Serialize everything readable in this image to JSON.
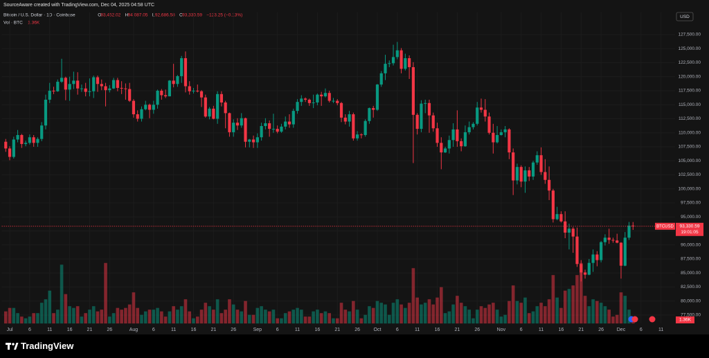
{
  "chart_data": {
    "type": "candlestick",
    "credit": "SourceAware created with TradingView.com, Dec 04, 2025 04:58 UTC",
    "title": "Bitcoin / U.S. Dollar · 1D · Coinbase",
    "ohlc_names": [
      "O",
      "H",
      "L",
      "C"
    ],
    "ohlc_texts": [
      "93,452.02",
      "94,087.05",
      "92,686.58",
      "93,330.59"
    ],
    "change": "−123.25 (−0.13%)",
    "currency": "USD",
    "symbol": "BTCUSD",
    "last_price_label": "93,330.59",
    "countdown": "19:01:05",
    "brand": "TradingView",
    "up_color": "#089981",
    "down_color": "#f23645",
    "grid": true,
    "xlim": [
      "2025-06-29",
      "2025-12-14"
    ],
    "ylim": [
      76000,
      131500
    ],
    "y2lim": [
      0,
      180000
    ],
    "xticks": [
      {
        "value": "2025-07-01",
        "label": "Jul"
      },
      {
        "value": "2025-07-06",
        "label": "6"
      },
      {
        "value": "2025-07-11",
        "label": "11"
      },
      {
        "value": "2025-07-16",
        "label": "16"
      },
      {
        "value": "2025-07-21",
        "label": "21"
      },
      {
        "value": "2025-07-26",
        "label": "26"
      },
      {
        "value": "2025-08-01",
        "label": "Aug"
      },
      {
        "value": "2025-08-06",
        "label": "6"
      },
      {
        "value": "2025-08-11",
        "label": "11"
      },
      {
        "value": "2025-08-16",
        "label": "16"
      },
      {
        "value": "2025-08-21",
        "label": "21"
      },
      {
        "value": "2025-08-26",
        "label": "26"
      },
      {
        "value": "2025-09-01",
        "label": "Sep"
      },
      {
        "value": "2025-09-06",
        "label": "6"
      },
      {
        "value": "2025-09-11",
        "label": "11"
      },
      {
        "value": "2025-09-16",
        "label": "16"
      },
      {
        "value": "2025-09-21",
        "label": "21"
      },
      {
        "value": "2025-09-26",
        "label": "26"
      },
      {
        "value": "2025-10-01",
        "label": "Oct"
      },
      {
        "value": "2025-10-06",
        "label": "6"
      },
      {
        "value": "2025-10-11",
        "label": "11"
      },
      {
        "value": "2025-10-16",
        "label": "16"
      },
      {
        "value": "2025-10-21",
        "label": "21"
      },
      {
        "value": "2025-10-26",
        "label": "26"
      },
      {
        "value": "2025-11-01",
        "label": "Nov"
      },
      {
        "value": "2025-11-06",
        "label": "6"
      },
      {
        "value": "2025-11-11",
        "label": "11"
      },
      {
        "value": "2025-11-16",
        "label": "16"
      },
      {
        "value": "2025-11-21",
        "label": "21"
      },
      {
        "value": "2025-11-26",
        "label": "26"
      },
      {
        "value": "2025-12-01",
        "label": "Dec"
      },
      {
        "value": "2025-12-06",
        "label": "6"
      },
      {
        "value": "2025-12-11",
        "label": "11"
      }
    ],
    "yticks": [
      {
        "value": 77500,
        "label": "77,500.00"
      },
      {
        "value": 80000,
        "label": "80,000.00"
      },
      {
        "value": 82500,
        "label": "82,500.00"
      },
      {
        "value": 85000,
        "label": "85,000.00"
      },
      {
        "value": 87500,
        "label": "87,500.00"
      },
      {
        "value": 90000,
        "label": "90,000.00"
      },
      {
        "value": 92500,
        "label": "92,500.00"
      },
      {
        "value": 95000,
        "label": "95,000.00"
      },
      {
        "value": 97500,
        "label": "97,500.00"
      },
      {
        "value": 100000,
        "label": "100,000.00"
      },
      {
        "value": 102500,
        "label": "102,500.00"
      },
      {
        "value": 105000,
        "label": "105,000.00"
      },
      {
        "value": 107500,
        "label": "107,500.00"
      },
      {
        "value": 110000,
        "label": "110,000.00"
      },
      {
        "value": 112500,
        "label": "112,500.00"
      },
      {
        "value": 115000,
        "label": "115,000.00"
      },
      {
        "value": 117500,
        "label": "117,500.00"
      },
      {
        "value": 120000,
        "label": "120,000.00"
      },
      {
        "value": 122500,
        "label": "122,500.00"
      },
      {
        "value": 125000,
        "label": "125,000.00"
      },
      {
        "value": 127500,
        "label": "127,500.00"
      }
    ],
    "x": [
      "2025-06-30",
      "2025-07-01",
      "2025-07-02",
      "2025-07-03",
      "2025-07-04",
      "2025-07-05",
      "2025-07-06",
      "2025-07-07",
      "2025-07-08",
      "2025-07-09",
      "2025-07-10",
      "2025-07-11",
      "2025-07-12",
      "2025-07-13",
      "2025-07-14",
      "2025-07-15",
      "2025-07-16",
      "2025-07-17",
      "2025-07-18",
      "2025-07-19",
      "2025-07-20",
      "2025-07-21",
      "2025-07-22",
      "2025-07-23",
      "2025-07-24",
      "2025-07-25",
      "2025-07-26",
      "2025-07-27",
      "2025-07-28",
      "2025-07-29",
      "2025-07-30",
      "2025-07-31",
      "2025-08-01",
      "2025-08-02",
      "2025-08-03",
      "2025-08-04",
      "2025-08-05",
      "2025-08-06",
      "2025-08-07",
      "2025-08-08",
      "2025-08-09",
      "2025-08-10",
      "2025-08-11",
      "2025-08-12",
      "2025-08-13",
      "2025-08-14",
      "2025-08-15",
      "2025-08-16",
      "2025-08-17",
      "2025-08-18",
      "2025-08-19",
      "2025-08-20",
      "2025-08-21",
      "2025-08-22",
      "2025-08-23",
      "2025-08-24",
      "2025-08-25",
      "2025-08-26",
      "2025-08-27",
      "2025-08-28",
      "2025-08-29",
      "2025-08-30",
      "2025-08-31",
      "2025-09-01",
      "2025-09-02",
      "2025-09-03",
      "2025-09-04",
      "2025-09-05",
      "2025-09-06",
      "2025-09-07",
      "2025-09-08",
      "2025-09-09",
      "2025-09-10",
      "2025-09-11",
      "2025-09-12",
      "2025-09-13",
      "2025-09-14",
      "2025-09-15",
      "2025-09-16",
      "2025-09-17",
      "2025-09-18",
      "2025-09-19",
      "2025-09-20",
      "2025-09-21",
      "2025-09-22",
      "2025-09-23",
      "2025-09-24",
      "2025-09-25",
      "2025-09-26",
      "2025-09-27",
      "2025-09-28",
      "2025-09-29",
      "2025-09-30",
      "2025-10-01",
      "2025-10-02",
      "2025-10-03",
      "2025-10-04",
      "2025-10-05",
      "2025-10-06",
      "2025-10-07",
      "2025-10-08",
      "2025-10-09",
      "2025-10-10",
      "2025-10-11",
      "2025-10-12",
      "2025-10-13",
      "2025-10-14",
      "2025-10-15",
      "2025-10-16",
      "2025-10-17",
      "2025-10-18",
      "2025-10-19",
      "2025-10-20",
      "2025-10-21",
      "2025-10-22",
      "2025-10-23",
      "2025-10-24",
      "2025-10-25",
      "2025-10-26",
      "2025-10-27",
      "2025-10-28",
      "2025-10-29",
      "2025-10-30",
      "2025-10-31",
      "2025-11-01",
      "2025-11-02",
      "2025-11-03",
      "2025-11-04",
      "2025-11-05",
      "2025-11-06",
      "2025-11-07",
      "2025-11-08",
      "2025-11-09",
      "2025-11-10",
      "2025-11-11",
      "2025-11-12",
      "2025-11-13",
      "2025-11-14",
      "2025-11-15",
      "2025-11-16",
      "2025-11-17",
      "2025-11-18",
      "2025-11-19",
      "2025-11-20",
      "2025-11-21",
      "2025-11-22",
      "2025-11-23",
      "2025-11-24",
      "2025-11-25",
      "2025-11-26",
      "2025-11-27",
      "2025-11-28",
      "2025-11-29",
      "2025-11-30",
      "2025-12-01",
      "2025-12-02",
      "2025-12-03",
      "2025-12-04"
    ],
    "open": [
      108400,
      107200,
      105700,
      108800,
      109600,
      108000,
      108200,
      109200,
      108200,
      108900,
      111300,
      115900,
      117500,
      117400,
      119100,
      119800,
      117700,
      118700,
      119300,
      117900,
      117900,
      117300,
      117400,
      119900,
      118700,
      118300,
      117600,
      117900,
      119400,
      118000,
      117900,
      117800,
      115700,
      113300,
      112500,
      114200,
      115000,
      114100,
      115000,
      117500,
      116700,
      116500,
      119300,
      118700,
      120100,
      123300,
      118300,
      117400,
      117500,
      117400,
      116300,
      112900,
      114300,
      112500,
      116900,
      115400,
      113500,
      110100,
      111800,
      111300,
      112600,
      108400,
      108800,
      108300,
      109200,
      111200,
      111700,
      110700,
      110700,
      110200,
      111100,
      112000,
      111500,
      113900,
      115500,
      116100,
      115900,
      115300,
      115400,
      116800,
      116500,
      117100,
      115700,
      115700,
      115300,
      112700,
      112000,
      113300,
      109000,
      109700,
      109600,
      112100,
      114400,
      114100,
      118600,
      120600,
      122300,
      122400,
      123500,
      124700,
      121400,
      123300,
      121700,
      113200,
      110700,
      115200,
      115300,
      113100,
      110800,
      108200,
      106500,
      107200,
      108700,
      110600,
      108500,
      107600,
      110100,
      111000,
      111600,
      114500,
      114100,
      112900,
      110000,
      108300,
      109600,
      110100,
      110600,
      106500,
      101500,
      103900,
      101300,
      103300,
      102200,
      104700,
      106000,
      103000,
      101600,
      99700,
      94600,
      95500,
      94200,
      92200,
      92900,
      91500,
      86600,
      85100,
      84700,
      86800,
      88300,
      87300,
      90500,
      91300,
      90900,
      90800,
      90400,
      86300,
      91300,
      93452.02
    ],
    "high": [
      108900,
      107600,
      109300,
      110500,
      109800,
      108600,
      109700,
      109600,
      109200,
      111900,
      116800,
      118900,
      118200,
      119500,
      123200,
      120000,
      120000,
      120900,
      120800,
      118600,
      118900,
      119700,
      120200,
      120200,
      119500,
      118900,
      118500,
      119800,
      119800,
      119200,
      118800,
      118900,
      116000,
      114000,
      114700,
      115700,
      115200,
      115700,
      117700,
      117800,
      117700,
      119400,
      122300,
      120300,
      123700,
      124500,
      119200,
      118000,
      118600,
      117600,
      116800,
      114600,
      114800,
      117400,
      117400,
      115700,
      113600,
      112400,
      112600,
      113500,
      112700,
      108900,
      109500,
      109900,
      111800,
      112600,
      112200,
      113400,
      111300,
      111600,
      112900,
      113300,
      114300,
      116000,
      116700,
      116300,
      116100,
      116800,
      117000,
      117300,
      117900,
      117500,
      116200,
      116000,
      115500,
      113300,
      113900,
      113600,
      110300,
      109900,
      112400,
      114500,
      114800,
      118700,
      121000,
      123900,
      122900,
      125700,
      126200,
      125100,
      124100,
      123800,
      122600,
      113500,
      115800,
      115900,
      115900,
      113600,
      111800,
      109200,
      107500,
      109500,
      111700,
      114000,
      109000,
      111300,
      112000,
      111900,
      115500,
      116100,
      116000,
      113600,
      111600,
      111200,
      110600,
      111200,
      110800,
      107200,
      104500,
      104200,
      104000,
      103900,
      105000,
      106700,
      107400,
      105300,
      104000,
      100000,
      96800,
      96000,
      96000,
      93800,
      93200,
      93100,
      87300,
      85600,
      87500,
      89200,
      88900,
      90700,
      91900,
      92900,
      91300,
      92000,
      90500,
      92300,
      94100,
      94087.05
    ],
    "low": [
      106600,
      105100,
      105400,
      108300,
      107300,
      107600,
      107900,
      107500,
      107500,
      108500,
      110600,
      115300,
      116900,
      117300,
      118900,
      115800,
      115700,
      117800,
      116800,
      117300,
      116500,
      116500,
      116200,
      117300,
      117600,
      114700,
      117200,
      117800,
      117400,
      116900,
      115900,
      115500,
      112700,
      112000,
      112000,
      114000,
      112600,
      113400,
      114300,
      115900,
      116200,
      116500,
      118100,
      118200,
      118900,
      117200,
      116800,
      117000,
      117200,
      114600,
      112700,
      112400,
      112400,
      111600,
      114700,
      110800,
      109300,
      109300,
      110500,
      110900,
      107400,
      107400,
      107300,
      107300,
      108600,
      110600,
      109300,
      110000,
      109900,
      110000,
      110600,
      110900,
      110900,
      113400,
      114800,
      115500,
      114800,
      114400,
      114900,
      114800,
      116300,
      115400,
      115300,
      114900,
      111900,
      111500,
      111100,
      108600,
      108600,
      109000,
      109300,
      111600,
      112700,
      113900,
      118200,
      119400,
      121700,
      122000,
      123100,
      120600,
      121100,
      119600,
      104600,
      109700,
      110100,
      113500,
      110000,
      110200,
      107500,
      103500,
      106400,
      106300,
      107500,
      107500,
      106700,
      107500,
      109700,
      110600,
      111300,
      113600,
      112000,
      109700,
      106300,
      108100,
      109500,
      109200,
      105300,
      98900,
      100800,
      100300,
      99300,
      101400,
      101600,
      104300,
      102500,
      100900,
      98000,
      94000,
      94400,
      94000,
      91200,
      89200,
      88600,
      86100,
      83500,
      84000,
      84600,
      85200,
      86200,
      86900,
      89900,
      90200,
      90400,
      90300,
      84000,
      86200,
      90900,
      92686.58
    ],
    "close": [
      107200,
      105700,
      108800,
      109600,
      108000,
      108200,
      109200,
      108200,
      108900,
      111300,
      115900,
      117500,
      117400,
      119100,
      119800,
      117700,
      118700,
      119300,
      117900,
      117900,
      117300,
      117400,
      119900,
      118700,
      118300,
      117600,
      117900,
      119400,
      118000,
      117900,
      117800,
      115700,
      113300,
      112500,
      114200,
      115000,
      114100,
      115000,
      117500,
      116700,
      116500,
      119300,
      118700,
      120100,
      123300,
      118300,
      117400,
      117500,
      117400,
      116300,
      112900,
      114300,
      112500,
      116900,
      115400,
      113500,
      110100,
      111800,
      111300,
      112600,
      108400,
      108800,
      108300,
      109200,
      111200,
      111700,
      110700,
      110700,
      110200,
      111100,
      112000,
      111500,
      113900,
      115500,
      116100,
      115900,
      115300,
      115400,
      116800,
      116500,
      117100,
      115700,
      115700,
      115300,
      112700,
      112000,
      113300,
      109000,
      109700,
      109600,
      112100,
      114400,
      114100,
      118600,
      120600,
      122300,
      122400,
      123500,
      124700,
      121400,
      123300,
      121700,
      113200,
      110700,
      115200,
      115300,
      113100,
      110800,
      108200,
      106500,
      107200,
      108700,
      110600,
      108500,
      107600,
      110100,
      111000,
      111600,
      114500,
      114100,
      112900,
      110000,
      108300,
      109600,
      110100,
      110600,
      106500,
      101500,
      103900,
      101300,
      103300,
      102200,
      104700,
      106000,
      103000,
      101600,
      99700,
      94600,
      95500,
      94200,
      92200,
      92900,
      91500,
      86600,
      85100,
      84700,
      86800,
      88300,
      87300,
      90500,
      91300,
      90900,
      90800,
      90400,
      86300,
      91300,
      93453.84,
      93330.59
    ],
    "volume": {
      "name": "Vol · BTC",
      "last_label": "1.36K",
      "axis": "y2",
      "up_color": "rgba(8,153,129,0.5)",
      "down_color": "rgba(242,54,69,0.5)",
      "values": [
        7000,
        9000,
        9000,
        6000,
        4000,
        3000,
        4000,
        6000,
        6000,
        12000,
        14000,
        19000,
        6000,
        8000,
        34000,
        17000,
        10000,
        9000,
        10000,
        4000,
        6000,
        8000,
        10000,
        7000,
        8000,
        35000,
        4000,
        6000,
        9000,
        8000,
        9000,
        11000,
        18000,
        9000,
        5000,
        7000,
        8000,
        8000,
        9000,
        7000,
        4000,
        7000,
        10000,
        8000,
        10000,
        14000,
        7000,
        3000,
        4000,
        8000,
        12000,
        10000,
        8000,
        14000,
        6000,
        8000,
        14000,
        11000,
        8000,
        7000,
        13000,
        5000,
        5000,
        9000,
        10000,
        8000,
        7000,
        8000,
        3000,
        3000,
        6000,
        7000,
        8000,
        9000,
        8000,
        4000,
        4000,
        7000,
        8000,
        6000,
        7000,
        6000,
        3000,
        3000,
        12000,
        8000,
        7000,
        13000,
        8000,
        3000,
        5000,
        10000,
        9000,
        13000,
        12000,
        11000,
        5000,
        12000,
        14000,
        11000,
        9000,
        12000,
        32000,
        15000,
        11000,
        12000,
        14000,
        11000,
        15000,
        21000,
        6000,
        7000,
        11000,
        16000,
        12000,
        10000,
        8000,
        3000,
        8000,
        10000,
        9000,
        11000,
        12000,
        8000,
        4000,
        5000,
        13000,
        22000,
        13000,
        12000,
        15000,
        6000,
        7000,
        10000,
        12000,
        10000,
        14000,
        28000,
        15000,
        9000,
        19000,
        20000,
        22000,
        28000,
        35000,
        16000,
        10000,
        14000,
        13000,
        12000,
        10000,
        8000,
        4000,
        5000,
        18000,
        16000,
        8000,
        1360
      ]
    }
  }
}
